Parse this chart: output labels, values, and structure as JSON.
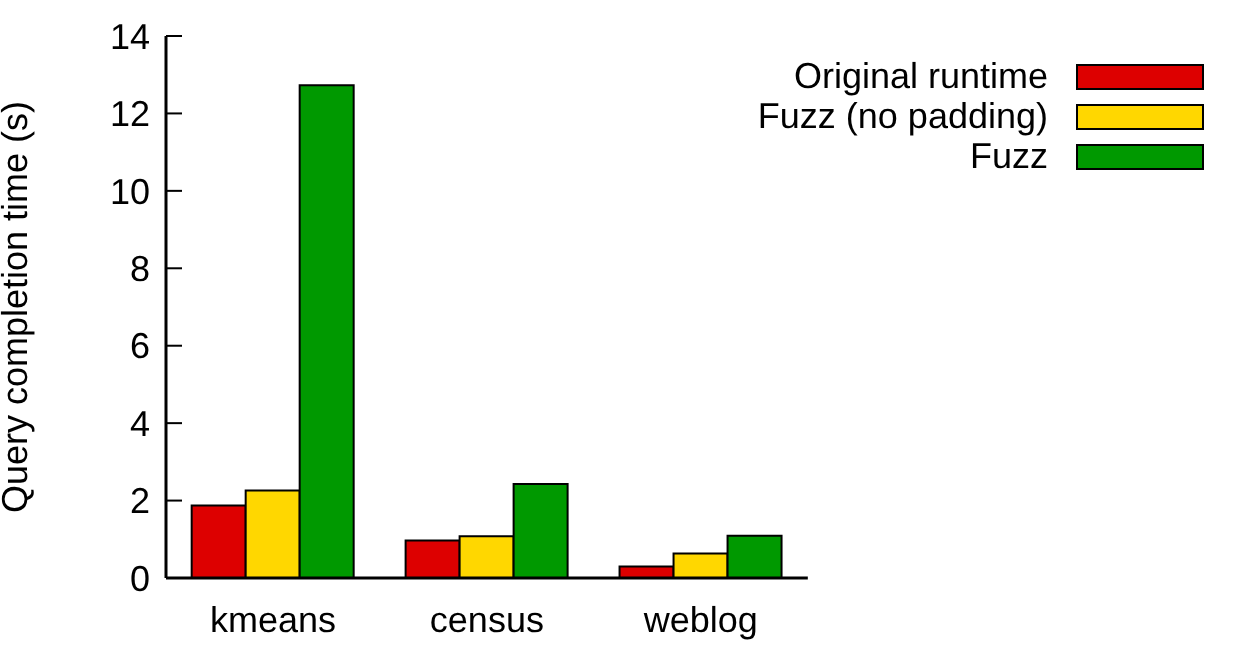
{
  "chart_data": {
    "type": "bar",
    "ylabel": "Query completion time (s)",
    "categories": [
      "kmeans",
      "census",
      "weblog"
    ],
    "series": [
      {
        "name": "Original runtime",
        "color": "#dd0000",
        "values": [
          1.87,
          0.97,
          0.3
        ]
      },
      {
        "name": "Fuzz (no padding)",
        "color": "#ffd700",
        "values": [
          2.26,
          1.08,
          0.63
        ]
      },
      {
        "name": "Fuzz",
        "color": "#009900",
        "values": [
          12.73,
          2.43,
          1.09
        ]
      }
    ],
    "ylim": [
      0,
      14
    ],
    "yticks": [
      0,
      2,
      4,
      6,
      8,
      10,
      12,
      14
    ],
    "grid": false,
    "legend": "top right"
  }
}
